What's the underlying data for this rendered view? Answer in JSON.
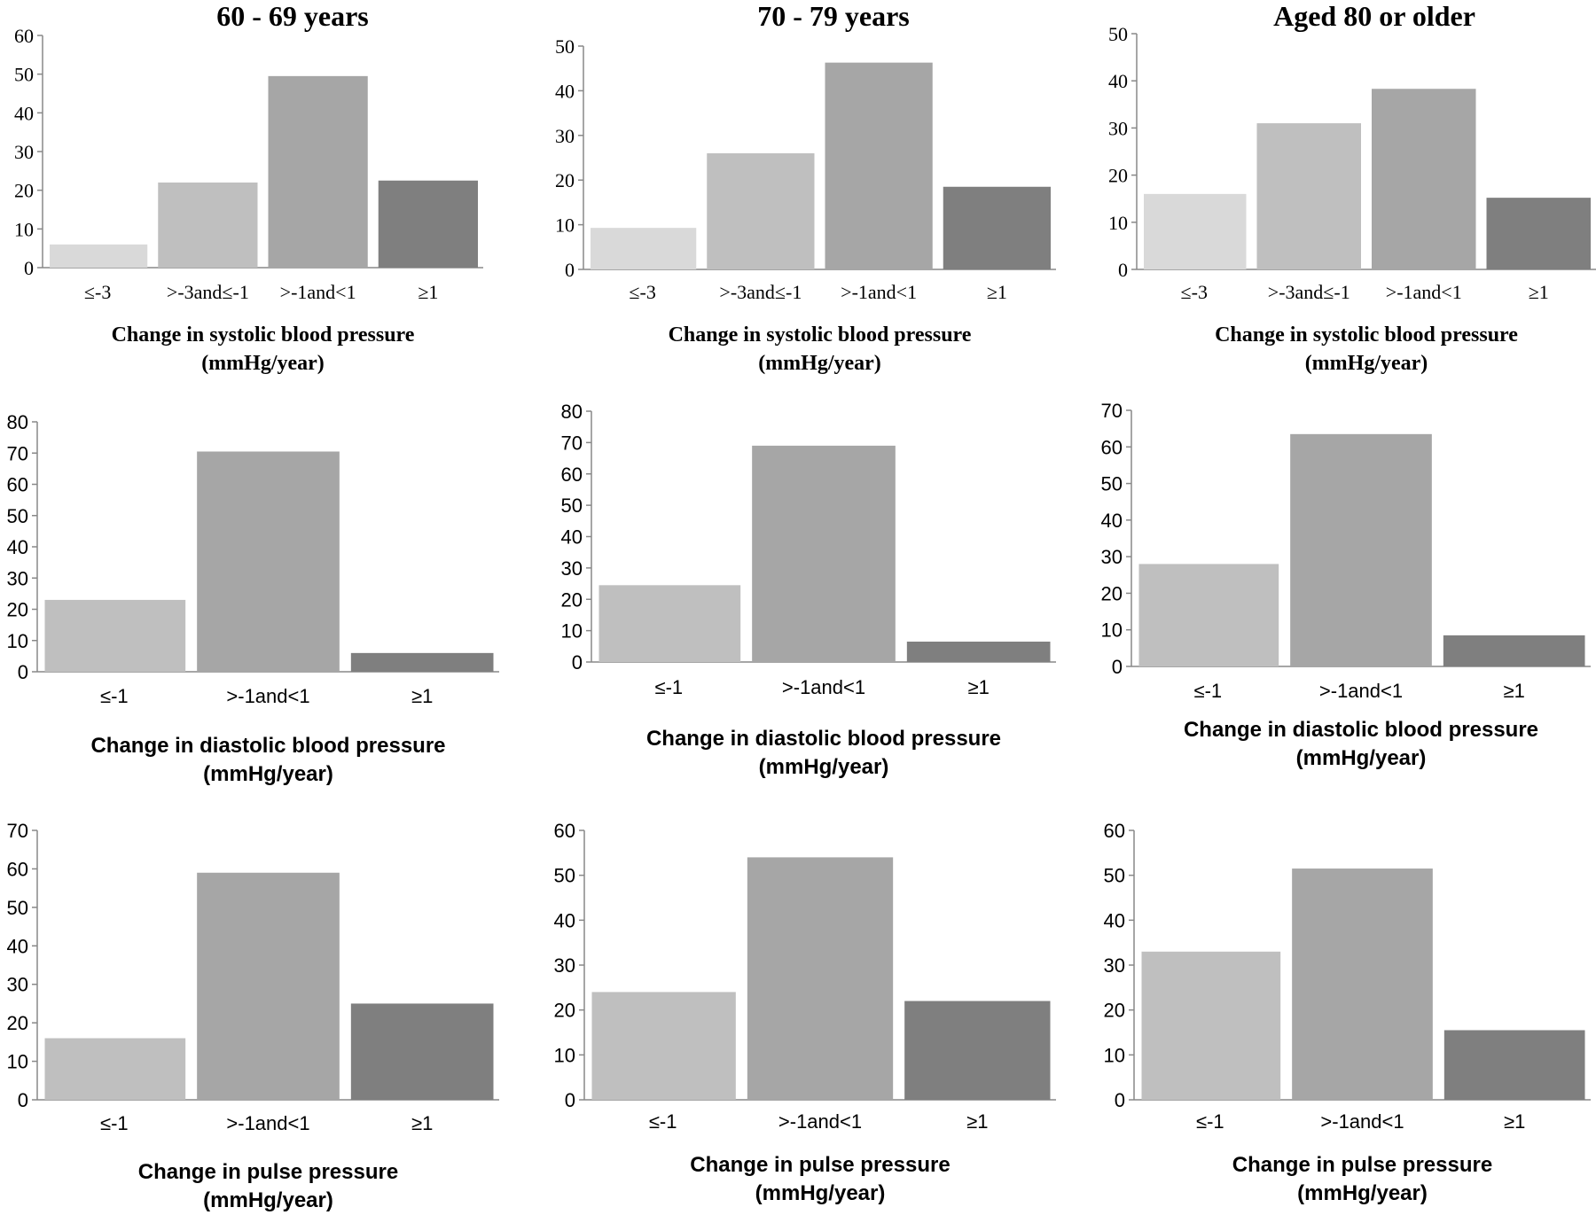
{
  "column_titles": [
    "60 - 69 years",
    "70 - 79 years",
    "Aged 80 or older"
  ],
  "colors": {
    "lightest": "#d9d9d9",
    "light": "#bfbfbf",
    "mid": "#a6a6a6",
    "dark": "#7f7f7f",
    "axis": "#888888"
  },
  "chart_data": [
    {
      "type": "bar",
      "row": "systolic",
      "age_group": "60 - 69 years",
      "categories": [
        "≤-3",
        ">-3and≤-1",
        ">-1and<1",
        "≥1"
      ],
      "values": [
        6,
        22,
        49.5,
        22.5
      ],
      "ylim": [
        0,
        60
      ],
      "yticks": [
        0,
        10,
        20,
        30,
        40,
        50,
        60
      ],
      "xlabel": [
        "Change in systolic blood pressure",
        "(mmHg/year)"
      ],
      "ylabel": ""
    },
    {
      "type": "bar",
      "row": "systolic",
      "age_group": "70 - 79 years",
      "categories": [
        "≤-3",
        ">-3and≤-1",
        ">-1and<1",
        "≥1"
      ],
      "values": [
        9.3,
        26,
        46.3,
        18.5
      ],
      "ylim": [
        0,
        50
      ],
      "yticks": [
        0,
        10,
        20,
        30,
        40,
        50
      ],
      "xlabel": [
        "Change in systolic blood pressure",
        "(mmHg/year)"
      ],
      "ylabel": ""
    },
    {
      "type": "bar",
      "row": "systolic",
      "age_group": "Aged 80 or older",
      "categories": [
        "≤-3",
        ">-3and≤-1",
        ">-1and<1",
        "≥1"
      ],
      "values": [
        16,
        31,
        38.3,
        15.2
      ],
      "ylim": [
        0,
        50
      ],
      "yticks": [
        0,
        10,
        20,
        30,
        40,
        50
      ],
      "xlabel": [
        "Change in systolic blood pressure",
        "(mmHg/year)"
      ],
      "ylabel": ""
    },
    {
      "type": "bar",
      "row": "diastolic",
      "age_group": "60 - 69 years",
      "categories": [
        "≤-1",
        ">-1and<1",
        "≥1"
      ],
      "values": [
        23,
        70.5,
        6
      ],
      "ylim": [
        0,
        80
      ],
      "yticks": [
        0,
        10,
        20,
        30,
        40,
        50,
        60,
        70,
        80
      ],
      "xlabel": [
        "Change in diastolic blood pressure",
        "(mmHg/year)"
      ],
      "ylabel": ""
    },
    {
      "type": "bar",
      "row": "diastolic",
      "age_group": "70 - 79 years",
      "categories": [
        "≤-1",
        ">-1and<1",
        "≥1"
      ],
      "values": [
        24.5,
        69,
        6.5
      ],
      "ylim": [
        0,
        80
      ],
      "yticks": [
        0,
        10,
        20,
        30,
        40,
        50,
        60,
        70,
        80
      ],
      "xlabel": [
        "Change in diastolic blood pressure",
        "(mmHg/year)"
      ],
      "ylabel": ""
    },
    {
      "type": "bar",
      "row": "diastolic",
      "age_group": "Aged 80 or older",
      "categories": [
        "≤-1",
        ">-1and<1",
        "≥1"
      ],
      "values": [
        28,
        63.5,
        8.5
      ],
      "ylim": [
        0,
        70
      ],
      "yticks": [
        0,
        10,
        20,
        30,
        40,
        50,
        60,
        70
      ],
      "xlabel": [
        "Change in diastolic blood pressure",
        "(mmHg/year)"
      ],
      "ylabel": ""
    },
    {
      "type": "bar",
      "row": "pulse",
      "age_group": "60 - 69 years",
      "categories": [
        "≤-1",
        ">-1and<1",
        "≥1"
      ],
      "values": [
        16,
        59,
        25
      ],
      "ylim": [
        0,
        70
      ],
      "yticks": [
        0,
        10,
        20,
        30,
        40,
        50,
        60,
        70
      ],
      "xlabel": [
        "Change in pulse pressure",
        "(mmHg/year)"
      ],
      "ylabel": ""
    },
    {
      "type": "bar",
      "row": "pulse",
      "age_group": "70 - 79 years",
      "categories": [
        "≤-1",
        ">-1and<1",
        "≥1"
      ],
      "values": [
        24,
        54,
        22
      ],
      "ylim": [
        0,
        60
      ],
      "yticks": [
        0,
        10,
        20,
        30,
        40,
        50,
        60
      ],
      "xlabel": [
        "Change in pulse pressure",
        "(mmHg/year)"
      ],
      "ylabel": ""
    },
    {
      "type": "bar",
      "row": "pulse",
      "age_group": "Aged 80 or older",
      "categories": [
        "≤-1",
        ">-1and<1",
        "≥1"
      ],
      "values": [
        33,
        51.5,
        15.5
      ],
      "ylim": [
        0,
        60
      ],
      "yticks": [
        0,
        10,
        20,
        30,
        40,
        50,
        60
      ],
      "xlabel": [
        "Change in pulse pressure",
        "(mmHg/year)"
      ],
      "ylabel": ""
    }
  ]
}
